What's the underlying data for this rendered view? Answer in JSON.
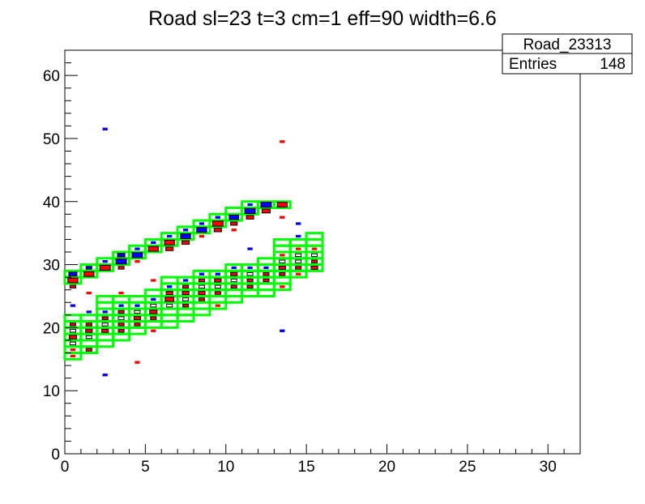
{
  "chart_data": {
    "type": "heatmap",
    "title": "Road sl=23 t=3 cm=1 eff=90 width=6.6",
    "xlabel": "",
    "ylabel": "",
    "xlim": [
      0,
      32
    ],
    "ylim": [
      0,
      64
    ],
    "x_ticks": [
      0,
      5,
      10,
      15,
      20,
      25,
      30
    ],
    "y_ticks": [
      0,
      10,
      20,
      30,
      40,
      50,
      60
    ],
    "grid": false,
    "stats_box": {
      "name": "Road_23313",
      "entries_label": "Entries",
      "entries_value": "148"
    },
    "colors": {
      "road": "#00ff00",
      "hit_red": "#ff0000",
      "hit_blue": "#0000ff",
      "hit_black": "#000000"
    },
    "road_bins": [
      [
        0,
        27
      ],
      [
        0,
        28
      ],
      [
        1,
        28
      ],
      [
        1,
        29
      ],
      [
        2,
        29
      ],
      [
        2,
        30
      ],
      [
        3,
        30
      ],
      [
        3,
        31
      ],
      [
        4,
        31
      ],
      [
        4,
        32
      ],
      [
        5,
        32
      ],
      [
        5,
        33
      ],
      [
        6,
        33
      ],
      [
        6,
        34
      ],
      [
        7,
        34
      ],
      [
        7,
        35
      ],
      [
        8,
        35
      ],
      [
        8,
        36
      ],
      [
        9,
        36
      ],
      [
        9,
        37
      ],
      [
        10,
        37
      ],
      [
        10,
        38
      ],
      [
        11,
        38
      ],
      [
        11,
        39
      ],
      [
        12,
        39
      ],
      [
        13,
        39
      ],
      [
        0,
        15
      ],
      [
        0,
        16
      ],
      [
        0,
        17
      ],
      [
        0,
        18
      ],
      [
        0,
        19
      ],
      [
        0,
        20
      ],
      [
        0,
        21
      ],
      [
        1,
        16
      ],
      [
        1,
        17
      ],
      [
        1,
        18
      ],
      [
        1,
        19
      ],
      [
        1,
        20
      ],
      [
        1,
        21
      ],
      [
        2,
        17
      ],
      [
        2,
        18
      ],
      [
        2,
        19
      ],
      [
        2,
        20
      ],
      [
        2,
        21
      ],
      [
        2,
        22
      ],
      [
        2,
        23
      ],
      [
        2,
        24
      ],
      [
        3,
        18
      ],
      [
        3,
        19
      ],
      [
        3,
        20
      ],
      [
        3,
        21
      ],
      [
        3,
        22
      ],
      [
        3,
        23
      ],
      [
        3,
        24
      ],
      [
        4,
        19
      ],
      [
        4,
        20
      ],
      [
        4,
        21
      ],
      [
        4,
        22
      ],
      [
        4,
        23
      ],
      [
        4,
        24
      ],
      [
        5,
        20
      ],
      [
        5,
        21
      ],
      [
        5,
        22
      ],
      [
        5,
        23
      ],
      [
        5,
        24
      ],
      [
        5,
        25
      ],
      [
        6,
        20
      ],
      [
        6,
        21
      ],
      [
        6,
        22
      ],
      [
        6,
        23
      ],
      [
        6,
        24
      ],
      [
        6,
        25
      ],
      [
        6,
        26
      ],
      [
        6,
        27
      ],
      [
        7,
        21
      ],
      [
        7,
        22
      ],
      [
        7,
        23
      ],
      [
        7,
        24
      ],
      [
        7,
        25
      ],
      [
        7,
        26
      ],
      [
        7,
        27
      ],
      [
        8,
        22
      ],
      [
        8,
        23
      ],
      [
        8,
        24
      ],
      [
        8,
        25
      ],
      [
        8,
        26
      ],
      [
        8,
        27
      ],
      [
        8,
        28
      ],
      [
        9,
        23
      ],
      [
        9,
        24
      ],
      [
        9,
        25
      ],
      [
        9,
        26
      ],
      [
        9,
        27
      ],
      [
        9,
        28
      ],
      [
        10,
        24
      ],
      [
        10,
        25
      ],
      [
        10,
        26
      ],
      [
        10,
        27
      ],
      [
        10,
        28
      ],
      [
        10,
        29
      ],
      [
        11,
        25
      ],
      [
        11,
        26
      ],
      [
        11,
        27
      ],
      [
        11,
        28
      ],
      [
        11,
        29
      ],
      [
        12,
        25
      ],
      [
        12,
        26
      ],
      [
        12,
        27
      ],
      [
        12,
        28
      ],
      [
        12,
        29
      ],
      [
        12,
        30
      ],
      [
        13,
        26
      ],
      [
        13,
        27
      ],
      [
        13,
        28
      ],
      [
        13,
        29
      ],
      [
        13,
        30
      ],
      [
        13,
        31
      ],
      [
        13,
        32
      ],
      [
        13,
        33
      ],
      [
        14,
        28
      ],
      [
        14,
        29
      ],
      [
        14,
        30
      ],
      [
        14,
        31
      ],
      [
        14,
        32
      ],
      [
        14,
        33
      ],
      [
        15,
        29
      ],
      [
        15,
        30
      ],
      [
        15,
        31
      ],
      [
        15,
        32
      ],
      [
        15,
        33
      ],
      [
        15,
        34
      ]
    ],
    "hits": [
      [
        0.5,
        27.5,
        "red",
        0.9
      ],
      [
        0.5,
        28.5,
        "blue",
        0.6
      ],
      [
        0.5,
        26.5,
        "red",
        0.3
      ],
      [
        1.5,
        28.5,
        "red",
        0.9
      ],
      [
        1.5,
        29.5,
        "blue",
        0.3
      ],
      [
        1.5,
        25.5,
        "red",
        0.2
      ],
      [
        2.5,
        29.5,
        "red",
        1.0
      ],
      [
        2.5,
        30.5,
        "blue",
        0.2
      ],
      [
        3.5,
        30.5,
        "blue",
        1.0
      ],
      [
        3.5,
        31.5,
        "blue",
        0.5
      ],
      [
        3.5,
        29.5,
        "red",
        0.3
      ],
      [
        3.5,
        25.5,
        "red",
        0.2
      ],
      [
        4.5,
        31.5,
        "blue",
        1.0
      ],
      [
        4.5,
        32.5,
        "blue",
        0.2
      ],
      [
        4.5,
        30.5,
        "red",
        0.2
      ],
      [
        5.5,
        32.5,
        "red",
        0.9
      ],
      [
        5.5,
        33.5,
        "blue",
        0.2
      ],
      [
        5.5,
        27.5,
        "red",
        0.2
      ],
      [
        6.5,
        33.5,
        "red",
        0.9
      ],
      [
        6.5,
        32.5,
        "red",
        0.5
      ],
      [
        6.5,
        34.5,
        "blue",
        0.2
      ],
      [
        7.5,
        34.5,
        "blue",
        0.9
      ],
      [
        7.5,
        33.5,
        "red",
        0.5
      ],
      [
        7.5,
        35.5,
        "blue",
        0.2
      ],
      [
        8.5,
        35.5,
        "blue",
        0.9
      ],
      [
        8.5,
        36.5,
        "blue",
        0.2
      ],
      [
        8.5,
        34.5,
        "red",
        0.2
      ],
      [
        9.5,
        36.5,
        "red",
        1.0
      ],
      [
        9.5,
        35.5,
        "red",
        0.5
      ],
      [
        9.5,
        37.5,
        "blue",
        0.2
      ],
      [
        10.5,
        37.5,
        "blue",
        0.8
      ],
      [
        10.5,
        36.5,
        "red",
        0.4
      ],
      [
        10.5,
        35.5,
        "red",
        0.2
      ],
      [
        11.5,
        38.5,
        "blue",
        1.0
      ],
      [
        11.5,
        37.5,
        "red",
        0.5
      ],
      [
        11.5,
        39.5,
        "blue",
        0.2
      ],
      [
        12.5,
        39.5,
        "blue",
        1.0
      ],
      [
        12.5,
        38.5,
        "red",
        0.6
      ],
      [
        13.5,
        39.5,
        "red",
        0.9
      ],
      [
        13.5,
        37.5,
        "red",
        0.2
      ],
      [
        13.5,
        49.5,
        "red",
        0.2
      ],
      [
        2.5,
        51.5,
        "blue",
        0.2
      ],
      [
        0.5,
        15.5,
        "red",
        0.2
      ],
      [
        0.5,
        16.5,
        "red",
        0.2
      ],
      [
        0.5,
        17.5,
        "black",
        0.3
      ],
      [
        0.5,
        18.5,
        "red",
        0.5
      ],
      [
        0.5,
        19.5,
        "black",
        0.3
      ],
      [
        0.5,
        20.5,
        "red",
        0.3
      ],
      [
        0.5,
        23.5,
        "blue",
        0.2
      ],
      [
        1.5,
        16.5,
        "red",
        0.3
      ],
      [
        1.5,
        18.5,
        "black",
        0.3
      ],
      [
        1.5,
        19.5,
        "red",
        0.4
      ],
      [
        1.5,
        20.5,
        "red",
        0.3
      ],
      [
        1.5,
        22.5,
        "blue",
        0.2
      ],
      [
        2.5,
        19.5,
        "red",
        0.4
      ],
      [
        2.5,
        20.5,
        "black",
        0.3
      ],
      [
        2.5,
        21.5,
        "red",
        0.3
      ],
      [
        2.5,
        22.5,
        "blue",
        0.2
      ],
      [
        2.5,
        12.5,
        "blue",
        0.2
      ],
      [
        3.5,
        19.5,
        "red",
        0.3
      ],
      [
        3.5,
        20.5,
        "red",
        0.3
      ],
      [
        3.5,
        21.5,
        "black",
        0.3
      ],
      [
        3.5,
        22.5,
        "red",
        0.3
      ],
      [
        3.5,
        23.5,
        "blue",
        0.2
      ],
      [
        4.5,
        20.5,
        "red",
        0.3
      ],
      [
        4.5,
        21.5,
        "red",
        0.4
      ],
      [
        4.5,
        22.5,
        "black",
        0.3
      ],
      [
        4.5,
        23.5,
        "blue",
        0.2
      ],
      [
        4.5,
        14.5,
        "red",
        0.2
      ],
      [
        5.5,
        21.5,
        "red",
        0.3
      ],
      [
        5.5,
        22.5,
        "red",
        0.5
      ],
      [
        5.5,
        23.5,
        "black",
        0.3
      ],
      [
        5.5,
        24.5,
        "blue",
        0.2
      ],
      [
        5.5,
        19.5,
        "red",
        0.2
      ],
      [
        6.5,
        23.5,
        "black",
        0.3
      ],
      [
        6.5,
        24.5,
        "red",
        0.7
      ],
      [
        6.5,
        25.5,
        "red",
        0.4
      ],
      [
        6.5,
        26.5,
        "blue",
        0.2
      ],
      [
        7.5,
        23.5,
        "red",
        0.3
      ],
      [
        7.5,
        24.5,
        "black",
        0.3
      ],
      [
        7.5,
        25.5,
        "red",
        0.4
      ],
      [
        7.5,
        26.5,
        "red",
        0.3
      ],
      [
        7.5,
        27.5,
        "blue",
        0.2
      ],
      [
        8.5,
        24.5,
        "red",
        0.3
      ],
      [
        8.5,
        25.5,
        "red",
        0.4
      ],
      [
        8.5,
        26.5,
        "black",
        0.3
      ],
      [
        8.5,
        27.5,
        "red",
        0.3
      ],
      [
        8.5,
        28.5,
        "blue",
        0.2
      ],
      [
        9.5,
        25.5,
        "red",
        0.3
      ],
      [
        9.5,
        26.5,
        "black",
        0.3
      ],
      [
        9.5,
        27.5,
        "red",
        0.4
      ],
      [
        9.5,
        28.5,
        "blue",
        0.2
      ],
      [
        9.5,
        23.5,
        "red",
        0.2
      ],
      [
        10.5,
        26.5,
        "red",
        0.3
      ],
      [
        10.5,
        27.5,
        "black",
        0.3
      ],
      [
        10.5,
        28.5,
        "red",
        0.4
      ],
      [
        10.5,
        29.5,
        "blue",
        0.2
      ],
      [
        11.5,
        26.5,
        "red",
        0.3
      ],
      [
        11.5,
        27.5,
        "red",
        0.3
      ],
      [
        11.5,
        28.5,
        "black",
        0.3
      ],
      [
        11.5,
        29.5,
        "blue",
        0.2
      ],
      [
        11.5,
        32.5,
        "blue",
        0.2
      ],
      [
        12.5,
        27.5,
        "red",
        0.3
      ],
      [
        12.5,
        28.5,
        "red",
        0.3
      ],
      [
        12.5,
        29.5,
        "blue",
        0.2
      ],
      [
        13.5,
        26.5,
        "red",
        0.2
      ],
      [
        13.5,
        28.5,
        "red",
        0.3
      ],
      [
        13.5,
        29.5,
        "red",
        0.4
      ],
      [
        13.5,
        30.5,
        "black",
        0.3
      ],
      [
        13.5,
        31.5,
        "red",
        0.2
      ],
      [
        13.5,
        19.5,
        "blue",
        0.2
      ],
      [
        14.5,
        28.5,
        "red",
        0.2
      ],
      [
        14.5,
        29.5,
        "red",
        0.3
      ],
      [
        14.5,
        30.5,
        "black",
        0.3
      ],
      [
        14.5,
        31.5,
        "black",
        0.3
      ],
      [
        14.5,
        32.5,
        "red",
        0.2
      ],
      [
        14.5,
        34.5,
        "blue",
        0.2
      ],
      [
        14.5,
        36.5,
        "blue",
        0.2
      ],
      [
        15.5,
        29.5,
        "red",
        0.4
      ],
      [
        15.5,
        30.5,
        "red",
        0.3
      ],
      [
        15.5,
        31.5,
        "black",
        0.3
      ],
      [
        15.5,
        32.5,
        "red",
        0.2
      ]
    ]
  }
}
